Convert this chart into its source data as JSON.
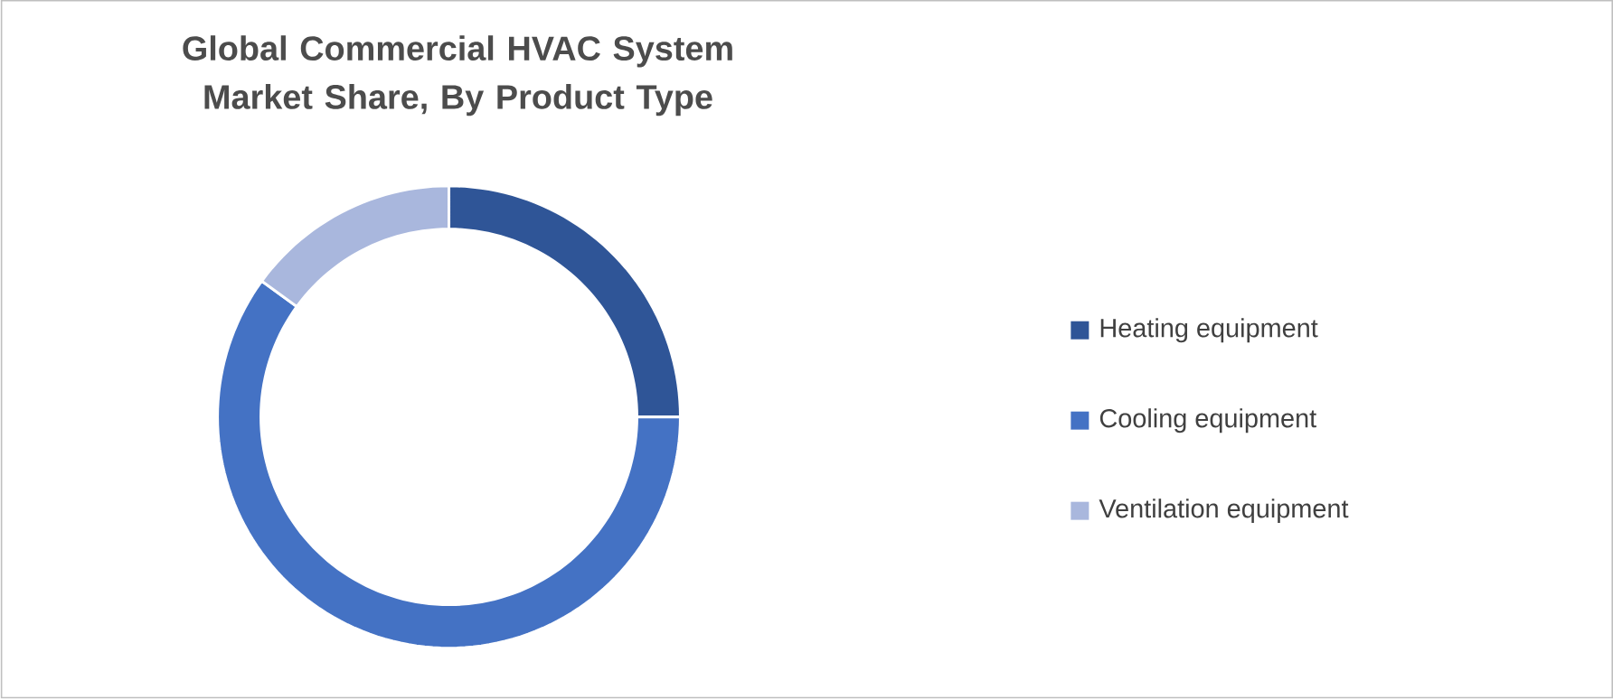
{
  "chart_data": {
    "type": "donut",
    "title": "Global Commercial HVAC System Market Share, By Product Type",
    "categories": [
      "Heating equipment",
      "Cooling equipment",
      "Ventilation equipment"
    ],
    "values": [
      25,
      60,
      15
    ],
    "colors": [
      "#2f5597",
      "#4472c4",
      "#a9b7dd"
    ],
    "legend": "right"
  }
}
